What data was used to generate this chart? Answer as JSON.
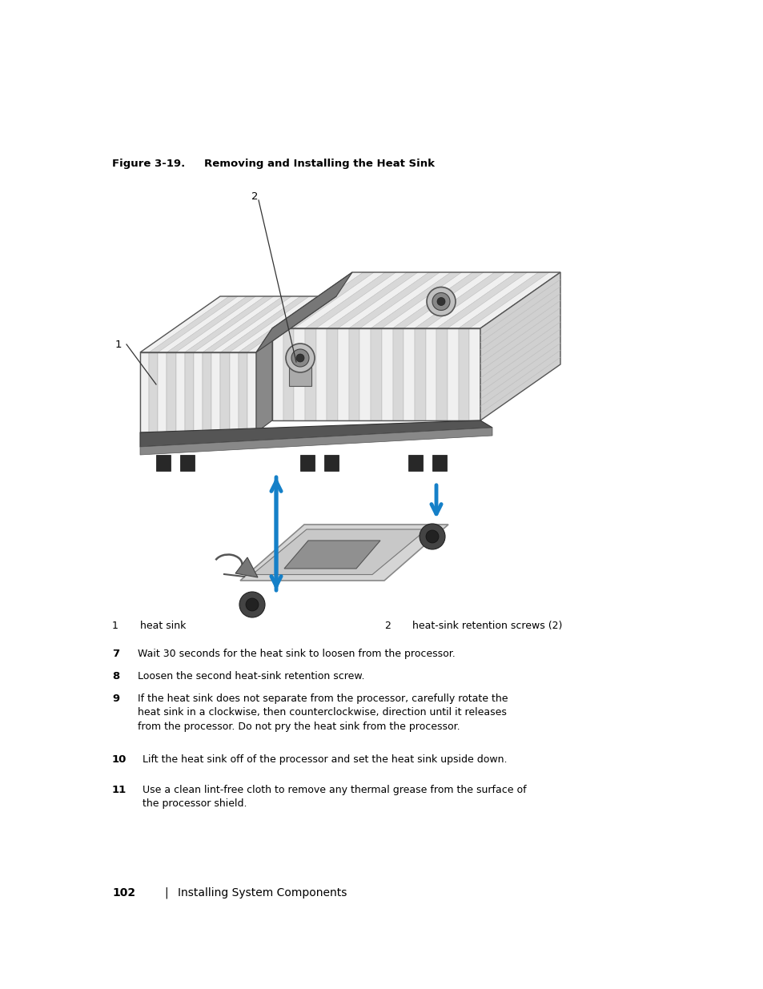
{
  "bg_color": "#ffffff",
  "page_width": 9.54,
  "page_height": 12.35,
  "arrow_color": "#1580c8",
  "text_color": "#000000",
  "caption_bold": "Figure 3-19.",
  "caption_rest": "    Removing and Installing the Heat Sink",
  "legend": [
    {
      "num": "1",
      "label": "heat sink"
    },
    {
      "num": "2",
      "label": "heat-sink retention screws (2)"
    }
  ],
  "steps": [
    {
      "num": "7",
      "text": "Wait 30 seconds for the heat sink to loosen from the processor."
    },
    {
      "num": "8",
      "text": "Loosen the second heat-sink retention screw."
    },
    {
      "num": "9",
      "text": "If the heat sink does not separate from the processor, carefully rotate the\nheat sink in a clockwise, then counterclockwise, direction until it releases\nfrom the processor. Do not pry the heat sink from the processor."
    },
    {
      "num": "10",
      "text": "Lift the heat sink off of the processor and set the heat sink upside down."
    },
    {
      "num": "11",
      "text": "Use a clean lint-free cloth to remove any thermal grease from the surface of\nthe processor shield."
    }
  ],
  "footer_num": "102",
  "footer_sep": "|",
  "footer_text": "Installing System Components"
}
